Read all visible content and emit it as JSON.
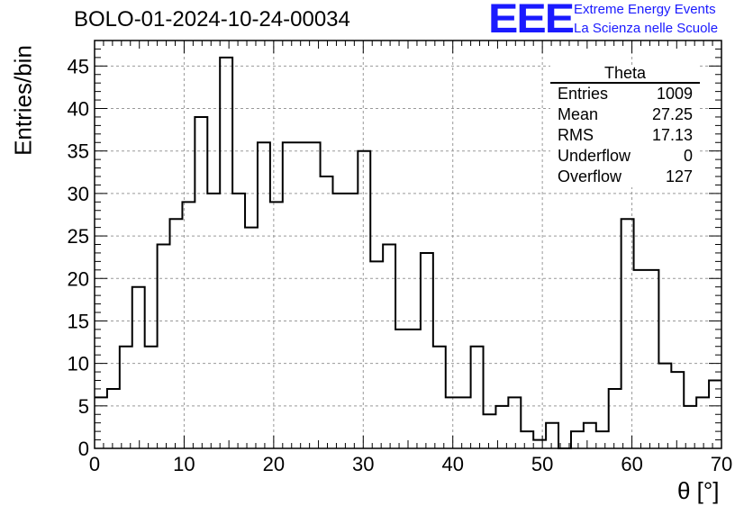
{
  "title": "BOLO-01-2024-10-24-00034",
  "logo": {
    "mark": "EEE",
    "line1": "Extreme Energy Events",
    "line2": "La Scienza nelle Scuole",
    "color": "#1a1aff"
  },
  "stats": {
    "title": "Theta",
    "rows": [
      {
        "label": "Entries",
        "value": "1009"
      },
      {
        "label": "Mean",
        "value": "27.25"
      },
      {
        "label": "RMS",
        "value": "17.13"
      },
      {
        "label": "Underflow",
        "value": "0"
      },
      {
        "label": "Overflow",
        "value": "127"
      }
    ]
  },
  "chart_data": {
    "type": "bar",
    "title": "BOLO-01-2024-10-24-00034",
    "xlabel": "θ [°]",
    "ylabel": "Entries/bin",
    "xlim": [
      0,
      70
    ],
    "ylim": [
      0,
      48
    ],
    "bin_width": 1.4,
    "values": [
      6,
      7,
      12,
      19,
      12,
      24,
      27,
      29,
      39,
      30,
      46,
      30,
      26,
      36,
      29,
      36,
      36,
      36,
      32,
      30,
      30,
      35,
      22,
      24,
      14,
      14,
      23,
      12,
      6,
      6,
      12,
      4,
      5,
      6,
      2,
      1,
      3,
      0,
      2,
      3,
      2,
      7,
      27,
      21,
      21,
      10,
      9,
      5,
      6,
      8
    ],
    "x_ticks": [
      "0",
      "10",
      "20",
      "30",
      "40",
      "50",
      "60",
      "70"
    ],
    "y_ticks": [
      "0",
      "5",
      "10",
      "15",
      "20",
      "25",
      "30",
      "35",
      "40",
      "45"
    ],
    "grid": true,
    "legend": "top-right"
  }
}
